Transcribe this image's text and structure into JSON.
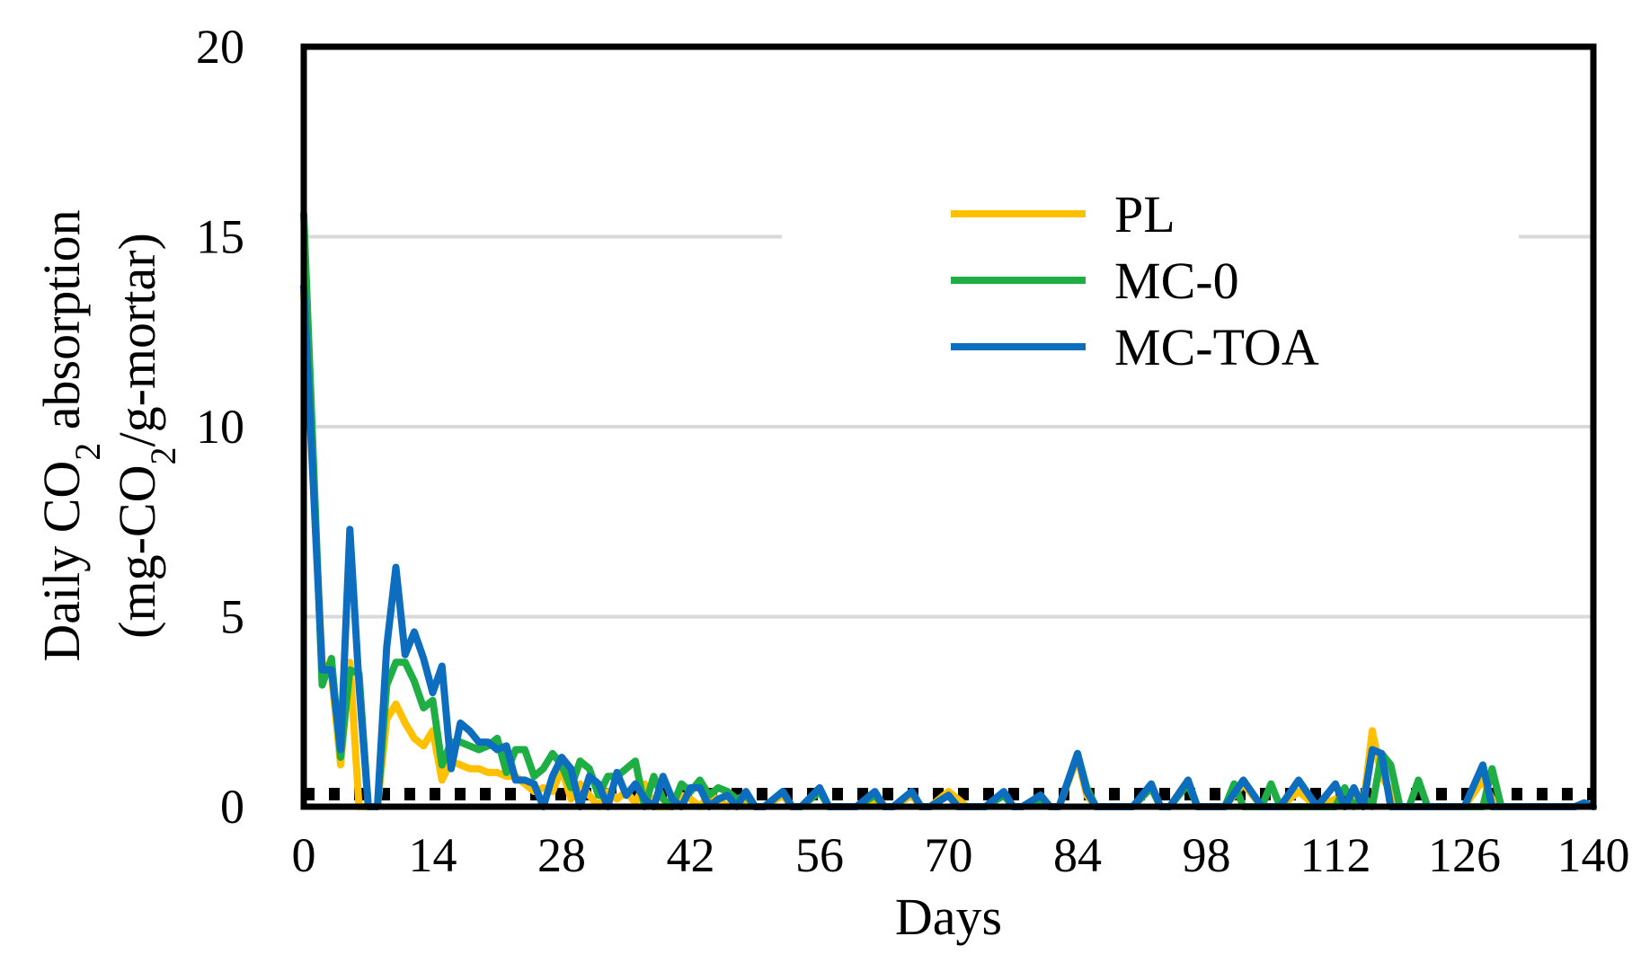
{
  "chart_data": {
    "type": "line",
    "xlabel": "Days",
    "ylabel_line1": "Daily CO",
    "ylabel_sub1": "2",
    "ylabel_line1_end": " absorption",
    "ylabel_line2": "(mg-CO",
    "ylabel_sub2": "2",
    "ylabel_line2_end": "/g-mortar)",
    "xlim": [
      0,
      140
    ],
    "ylim": [
      0,
      20
    ],
    "xticks": [
      "0",
      "14",
      "28",
      "42",
      "56",
      "70",
      "84",
      "98",
      "112",
      "126",
      "140"
    ],
    "yticks": [
      "0",
      "5",
      "10",
      "15",
      "20"
    ],
    "grid": "horizontal",
    "legend_position": "upper-right",
    "series": [
      {
        "name": "PL",
        "color": "#FFC000",
        "x": [
          0,
          2,
          3,
          4,
          5,
          6,
          7,
          8,
          9,
          10,
          11,
          12,
          13,
          14,
          15,
          16,
          17,
          18,
          19,
          20,
          21,
          22,
          23,
          24,
          25,
          26,
          27,
          28,
          29,
          30,
          31,
          32,
          33,
          34,
          35,
          36,
          37,
          38,
          39,
          40,
          41,
          42,
          43,
          44,
          45,
          46,
          47,
          48,
          49,
          50,
          52,
          53,
          54,
          56,
          57,
          58,
          60,
          62,
          63,
          64,
          66,
          67,
          68,
          70,
          71,
          72,
          74,
          76,
          77,
          78,
          80,
          81,
          82,
          84,
          85,
          86,
          88,
          90,
          92,
          93,
          94,
          96,
          97,
          98,
          100,
          102,
          104,
          105,
          106,
          108,
          110,
          112,
          113,
          114,
          115,
          116,
          117,
          118,
          119,
          120,
          122,
          124,
          126,
          128,
          129,
          130,
          132,
          134,
          136,
          138,
          139,
          140
        ],
        "y": [
          13.5,
          3.8,
          3.5,
          1.1,
          3.8,
          0,
          0,
          0,
          2.3,
          2.7,
          2.2,
          1.8,
          1.6,
          2.0,
          0.7,
          1.2,
          1.1,
          1.0,
          1.0,
          0.9,
          0.9,
          0.8,
          0.8,
          0.6,
          0.4,
          0.5,
          0.4,
          1.0,
          0.2,
          0.6,
          0.3,
          0,
          0.4,
          0.2,
          0.4,
          0.1,
          0.6,
          0,
          0,
          0,
          0.3,
          0.2,
          0,
          0.3,
          0.2,
          0,
          0.2,
          0.1,
          0,
          0,
          0.3,
          0,
          0,
          0.4,
          0,
          0,
          0,
          0.2,
          0,
          0,
          0.3,
          0,
          0,
          0.4,
          0.2,
          0,
          0,
          0.3,
          0,
          0,
          0.3,
          0,
          0,
          1.3,
          0.3,
          0,
          0,
          0,
          0.5,
          0,
          0,
          0.7,
          0,
          0,
          0,
          0.6,
          0,
          0,
          0,
          0.4,
          0,
          0.2,
          0,
          0.3,
          0,
          2.0,
          0.8,
          0.4,
          0,
          0,
          0,
          0,
          0,
          0.7,
          0.2,
          0,
          0,
          0,
          0,
          0,
          0.1,
          0
        ]
      },
      {
        "name": "MC-0",
        "color": "#1FAE44",
        "x": [
          0,
          2,
          3,
          4,
          5,
          6,
          7,
          8,
          9,
          10,
          11,
          12,
          13,
          14,
          15,
          16,
          17,
          18,
          19,
          20,
          21,
          22,
          23,
          24,
          25,
          26,
          27,
          28,
          29,
          30,
          31,
          32,
          33,
          34,
          35,
          36,
          37,
          38,
          39,
          40,
          41,
          42,
          43,
          44,
          45,
          46,
          47,
          48,
          49,
          50,
          52,
          53,
          54,
          56,
          57,
          58,
          60,
          62,
          63,
          64,
          66,
          67,
          68,
          70,
          71,
          72,
          74,
          76,
          77,
          78,
          80,
          81,
          82,
          84,
          85,
          86,
          88,
          90,
          92,
          93,
          94,
          96,
          97,
          98,
          100,
          101,
          102,
          104,
          105,
          106,
          108,
          110,
          112,
          113,
          114,
          115,
          116,
          117,
          118,
          119,
          120,
          121,
          122,
          124,
          126,
          128,
          129,
          130,
          132,
          134,
          136,
          138,
          139,
          140
        ],
        "y": [
          15.6,
          3.2,
          3.9,
          1.3,
          3.6,
          3.5,
          0,
          0,
          3.2,
          3.8,
          3.8,
          3.3,
          2.6,
          2.8,
          1.1,
          1.7,
          1.7,
          1.6,
          1.5,
          1.6,
          1.8,
          0.9,
          1.5,
          1.5,
          0.8,
          1.0,
          1.4,
          1.1,
          0.5,
          1.2,
          1.0,
          0.3,
          0.8,
          0.8,
          1.0,
          1.2,
          0,
          0.8,
          0.2,
          0,
          0.6,
          0.4,
          0.7,
          0.3,
          0.5,
          0.4,
          0.2,
          0.3,
          0,
          0,
          0.4,
          0,
          0,
          0.4,
          0,
          0,
          0,
          0.3,
          0,
          0,
          0.4,
          0,
          0,
          0.3,
          0,
          0,
          0,
          0.3,
          0,
          0,
          0.2,
          0,
          0,
          1.4,
          0.5,
          0,
          0,
          0,
          0.5,
          0,
          0,
          0.6,
          0,
          0,
          0,
          0.6,
          0,
          0,
          0.6,
          0,
          0,
          0,
          0,
          0.5,
          0,
          0.3,
          0,
          1.4,
          1.1,
          0,
          0,
          0.7,
          0,
          0,
          0,
          0,
          1.0,
          0,
          0,
          0,
          0,
          0,
          0.1,
          0
        ]
      },
      {
        "name": "MC-TOA",
        "color": "#0D6EC0",
        "x": [
          0,
          2,
          3,
          4,
          5,
          6,
          7,
          8,
          9,
          10,
          11,
          12,
          13,
          14,
          15,
          16,
          17,
          18,
          19,
          20,
          21,
          22,
          23,
          24,
          25,
          26,
          27,
          28,
          29,
          30,
          31,
          32,
          33,
          34,
          35,
          36,
          37,
          38,
          39,
          40,
          41,
          42,
          43,
          44,
          45,
          46,
          47,
          48,
          49,
          50,
          52,
          53,
          54,
          56,
          57,
          58,
          60,
          62,
          63,
          64,
          66,
          67,
          68,
          70,
          71,
          72,
          74,
          76,
          77,
          78,
          80,
          81,
          82,
          84,
          85,
          86,
          88,
          90,
          92,
          93,
          94,
          96,
          97,
          98,
          100,
          102,
          104,
          105,
          106,
          108,
          110,
          112,
          113,
          114,
          115,
          116,
          117,
          118,
          119,
          120,
          122,
          124,
          126,
          128,
          129,
          130,
          132,
          134,
          136,
          138,
          139,
          140
        ],
        "y": [
          13.7,
          3.6,
          3.6,
          1.5,
          7.3,
          3.2,
          0,
          0,
          4.2,
          6.3,
          4.0,
          4.6,
          3.9,
          3.0,
          3.7,
          1.0,
          2.2,
          2.0,
          1.7,
          1.7,
          1.5,
          1.6,
          0.7,
          0.7,
          0.6,
          0,
          0.8,
          1.3,
          1.0,
          0,
          0.8,
          0.6,
          0,
          0.9,
          0.3,
          0.6,
          0.2,
          0,
          0.8,
          0.2,
          0,
          0.5,
          0.5,
          0,
          0.2,
          0.3,
          0,
          0.4,
          0,
          0,
          0.4,
          0,
          0,
          0.5,
          0,
          0,
          0,
          0.4,
          0,
          0,
          0.4,
          0,
          0,
          0.3,
          0,
          0,
          0,
          0.4,
          0,
          0,
          0.3,
          0,
          0,
          1.4,
          0.4,
          0,
          0,
          0,
          0.6,
          0,
          0,
          0.7,
          0,
          0,
          0,
          0.7,
          0,
          0,
          0,
          0.7,
          0,
          0.6,
          0,
          0.5,
          0,
          1.5,
          1.4,
          0,
          0,
          0,
          0,
          0,
          0,
          1.1,
          0,
          0,
          0,
          0,
          0,
          0,
          0.1,
          0
        ]
      }
    ]
  }
}
